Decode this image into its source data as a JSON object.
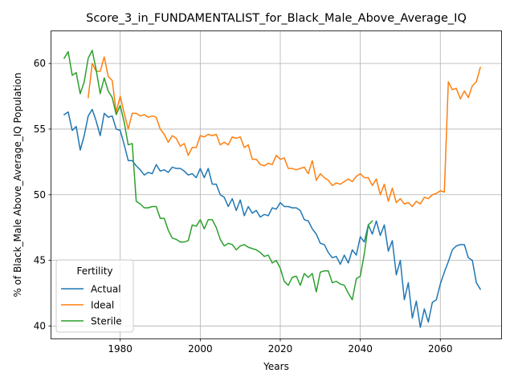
{
  "chart_data": {
    "type": "line",
    "title": "Score_3_in_FUNDAMENTALIST_for_Black_Male_Above_Average_IQ",
    "xlabel": "Years",
    "ylabel": "% of Black_Male Above_Average_IQ Population",
    "xlim": [
      1962.8,
      2075.2
    ],
    "ylim": [
      39.05,
      62.45
    ],
    "xticks": [
      1980,
      2000,
      2020,
      2040,
      2060
    ],
    "xtick_labels": [
      "1980",
      "2000",
      "2020",
      "2040",
      "2060"
    ],
    "yticks": [
      40,
      45,
      50,
      55,
      60
    ],
    "ytick_labels": [
      "40",
      "45",
      "50",
      "55",
      "60"
    ],
    "grid": true,
    "legend": {
      "title": "Fertility",
      "position": "lower-left"
    },
    "series": [
      {
        "name": "Actual",
        "color": "#1f77b4",
        "x": [
          1966,
          1967,
          1968,
          1969,
          1970,
          1971,
          1972,
          1973,
          1974,
          1975,
          1976,
          1977,
          1978,
          1979,
          1980,
          1981,
          1982,
          1983,
          1984,
          1985,
          1986,
          1987,
          1988,
          1989,
          1990,
          1991,
          1992,
          1993,
          1994,
          1995,
          1996,
          1997,
          1998,
          1999,
          2000,
          2001,
          2002,
          2003,
          2004,
          2005,
          2006,
          2007,
          2008,
          2009,
          2010,
          2011,
          2012,
          2013,
          2014,
          2015,
          2016,
          2017,
          2018,
          2019,
          2020,
          2021,
          2022,
          2023,
          2024,
          2025,
          2026,
          2027,
          2028,
          2029,
          2030,
          2031,
          2032,
          2033,
          2034,
          2035,
          2036,
          2037,
          2038,
          2039,
          2040,
          2041,
          2042,
          2043,
          2044,
          2045,
          2046,
          2047,
          2048,
          2049,
          2050,
          2051,
          2052,
          2053,
          2054,
          2055,
          2056,
          2057,
          2058,
          2059,
          2060,
          2061,
          2062,
          2063,
          2064,
          2065,
          2066,
          2067,
          2068,
          2069,
          2070
        ],
        "y": [
          56.1,
          56.3,
          54.9,
          55.2,
          53.4,
          54.5,
          56.0,
          56.5,
          55.6,
          54.5,
          56.2,
          55.9,
          56.0,
          55.0,
          54.9,
          53.8,
          52.6,
          52.6,
          52.2,
          51.9,
          51.5,
          51.7,
          51.6,
          52.3,
          51.8,
          51.9,
          51.7,
          52.1,
          52.0,
          52.0,
          51.8,
          51.5,
          51.6,
          51.3,
          52.0,
          51.3,
          52.0,
          50.8,
          50.8,
          50.0,
          49.8,
          49.1,
          49.7,
          48.8,
          49.6,
          48.4,
          49.1,
          48.6,
          48.8,
          48.3,
          48.5,
          48.4,
          49.0,
          48.9,
          49.4,
          49.1,
          49.1,
          49.0,
          49.0,
          48.8,
          48.1,
          48.0,
          47.4,
          47.0,
          46.3,
          46.2,
          45.6,
          45.2,
          45.3,
          44.7,
          45.4,
          44.8,
          45.8,
          45.4,
          46.8,
          46.4,
          47.7,
          47.0,
          48.0,
          46.9,
          47.7,
          45.7,
          46.5,
          43.9,
          45.0,
          42.0,
          43.3,
          40.6,
          41.9,
          39.9,
          41.3,
          40.3,
          41.8,
          42.0,
          43.2,
          44.1,
          44.9,
          45.8,
          46.1,
          46.2,
          46.2,
          45.2,
          45.0,
          43.3,
          42.8
        ]
      },
      {
        "name": "Ideal",
        "color": "#ff7f0e",
        "x": [
          1972,
          1973,
          1974,
          1975,
          1976,
          1977,
          1978,
          1979,
          1980,
          1981,
          1982,
          1983,
          1984,
          1985,
          1986,
          1987,
          1988,
          1989,
          1990,
          1991,
          1992,
          1993,
          1994,
          1995,
          1996,
          1997,
          1998,
          1999,
          2000,
          2001,
          2002,
          2003,
          2004,
          2005,
          2006,
          2007,
          2008,
          2009,
          2010,
          2011,
          2012,
          2013,
          2014,
          2015,
          2016,
          2017,
          2018,
          2019,
          2020,
          2021,
          2022,
          2023,
          2024,
          2025,
          2026,
          2027,
          2028,
          2029,
          2030,
          2031,
          2032,
          2033,
          2034,
          2035,
          2036,
          2037,
          2038,
          2039,
          2040,
          2041,
          2042,
          2043,
          2044,
          2045,
          2046,
          2047,
          2048,
          2049,
          2050,
          2051,
          2052,
          2053,
          2054,
          2055,
          2056,
          2057,
          2058,
          2059,
          2060,
          2061,
          2062,
          2063,
          2064,
          2065,
          2066,
          2067,
          2068,
          2069,
          2070
        ],
        "y": [
          57.4,
          60.0,
          59.4,
          59.4,
          60.5,
          59.0,
          58.7,
          56.3,
          57.5,
          56.2,
          55.0,
          56.2,
          56.2,
          56.0,
          56.1,
          55.9,
          56.0,
          55.9,
          55.0,
          54.6,
          54.0,
          54.5,
          54.3,
          53.7,
          53.9,
          53.0,
          53.6,
          53.6,
          54.5,
          54.4,
          54.6,
          54.5,
          54.6,
          53.8,
          54.0,
          53.8,
          54.4,
          54.3,
          54.4,
          53.6,
          53.8,
          52.7,
          52.7,
          52.3,
          52.2,
          52.4,
          52.3,
          53.0,
          52.7,
          52.8,
          52.0,
          52.0,
          51.9,
          52.0,
          52.1,
          51.6,
          52.6,
          51.1,
          51.6,
          51.3,
          51.1,
          50.7,
          50.9,
          50.8,
          51.0,
          51.2,
          51.0,
          51.4,
          51.6,
          51.3,
          51.3,
          50.7,
          51.2,
          50.0,
          50.8,
          49.5,
          50.5,
          49.4,
          49.7,
          49.3,
          49.4,
          49.1,
          49.5,
          49.3,
          49.8,
          49.7,
          50.0,
          50.1,
          50.3,
          50.2,
          58.6,
          58.0,
          58.1,
          57.3,
          57.9,
          57.4,
          58.3,
          58.6,
          59.7
        ]
      },
      {
        "name": "Sterile",
        "color": "#2ca02c",
        "x": [
          1966,
          1967,
          1968,
          1969,
          1970,
          1971,
          1972,
          1973,
          1974,
          1975,
          1976,
          1977,
          1978,
          1979,
          1980,
          1981,
          1982,
          1983,
          1984,
          1985,
          1986,
          1987,
          1988,
          1989,
          1990,
          1991,
          1992,
          1993,
          1994,
          1995,
          1996,
          1997,
          1998,
          1999,
          2000,
          2001,
          2002,
          2003,
          2004,
          2005,
          2006,
          2007,
          2008,
          2009,
          2010,
          2011,
          2012,
          2013,
          2014,
          2015,
          2016,
          2017,
          2018,
          2019,
          2020,
          2021,
          2022,
          2023,
          2024,
          2025,
          2026,
          2027,
          2028,
          2029,
          2030,
          2031,
          2032,
          2033,
          2034,
          2035,
          2036,
          2037,
          2038,
          2039,
          2040,
          2041,
          2042,
          2043
        ],
        "y": [
          60.4,
          60.9,
          59.1,
          59.3,
          57.7,
          58.6,
          60.4,
          61.0,
          59.5,
          57.7,
          58.9,
          57.9,
          57.4,
          56.1,
          56.8,
          55.5,
          53.8,
          53.9,
          49.5,
          49.3,
          49.0,
          49.0,
          49.1,
          49.1,
          48.2,
          48.2,
          47.3,
          46.7,
          46.6,
          46.4,
          46.4,
          46.5,
          47.7,
          47.6,
          48.1,
          47.4,
          48.1,
          48.1,
          47.5,
          46.6,
          46.1,
          46.3,
          46.2,
          45.8,
          46.1,
          46.2,
          46.0,
          45.9,
          45.8,
          45.6,
          45.3,
          45.4,
          44.8,
          45.0,
          44.4,
          43.4,
          43.1,
          43.7,
          43.8,
          43.1,
          44.0,
          43.7,
          44.0,
          42.6,
          44.1,
          44.2,
          44.2,
          43.3,
          43.4,
          43.2,
          43.1,
          42.5,
          42.0,
          43.6,
          43.8,
          45.5,
          47.7,
          48.0
        ]
      }
    ]
  }
}
